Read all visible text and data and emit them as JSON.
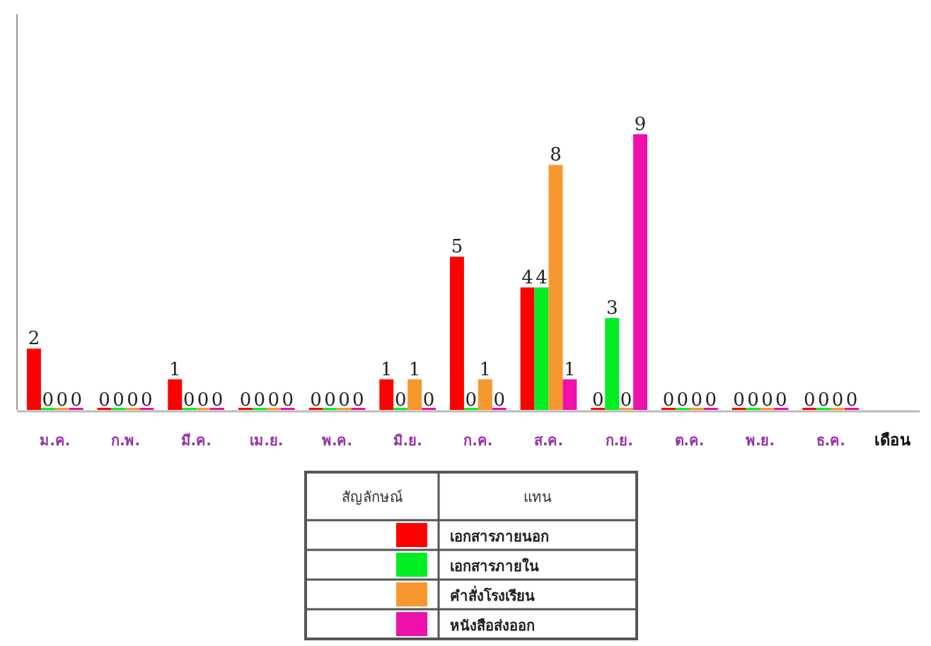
{
  "chart_data": {
    "type": "bar",
    "xlabel": "เดือน",
    "legend_title": "สัญลักษณ์",
    "annotations": [
      "แทน"
    ],
    "legend": "bottom",
    "data_labels": true,
    "categories": [
      "ม.ค.",
      "ก.พ.",
      "มี.ค.",
      "เม.ย.",
      "พ.ค.",
      "มิ.ย.",
      "ก.ค.",
      "ส.ค.",
      "ก.ย.",
      "ต.ค.",
      "พ.ย.",
      "ธ.ค."
    ],
    "series": [
      {
        "name": "เอกสารภายนอก",
        "color": "#ff0000",
        "values": [
          2,
          0,
          1,
          0,
          0,
          1,
          5,
          4,
          0,
          0,
          0,
          0
        ]
      },
      {
        "name": "เอกสารภายใน",
        "color": "#00ee22",
        "values": [
          0,
          0,
          0,
          0,
          0,
          0,
          0,
          4,
          3,
          0,
          0,
          0
        ]
      },
      {
        "name": "คำสั่งโรงเรียน",
        "color": "#f7982f",
        "values": [
          0,
          0,
          0,
          0,
          0,
          1,
          1,
          8,
          0,
          0,
          0,
          0
        ]
      },
      {
        "name": "หนังสือส่งออก",
        "color": "#ee11aa",
        "values": [
          0,
          0,
          0,
          0,
          0,
          0,
          0,
          1,
          9,
          0,
          0,
          0
        ]
      }
    ]
  }
}
